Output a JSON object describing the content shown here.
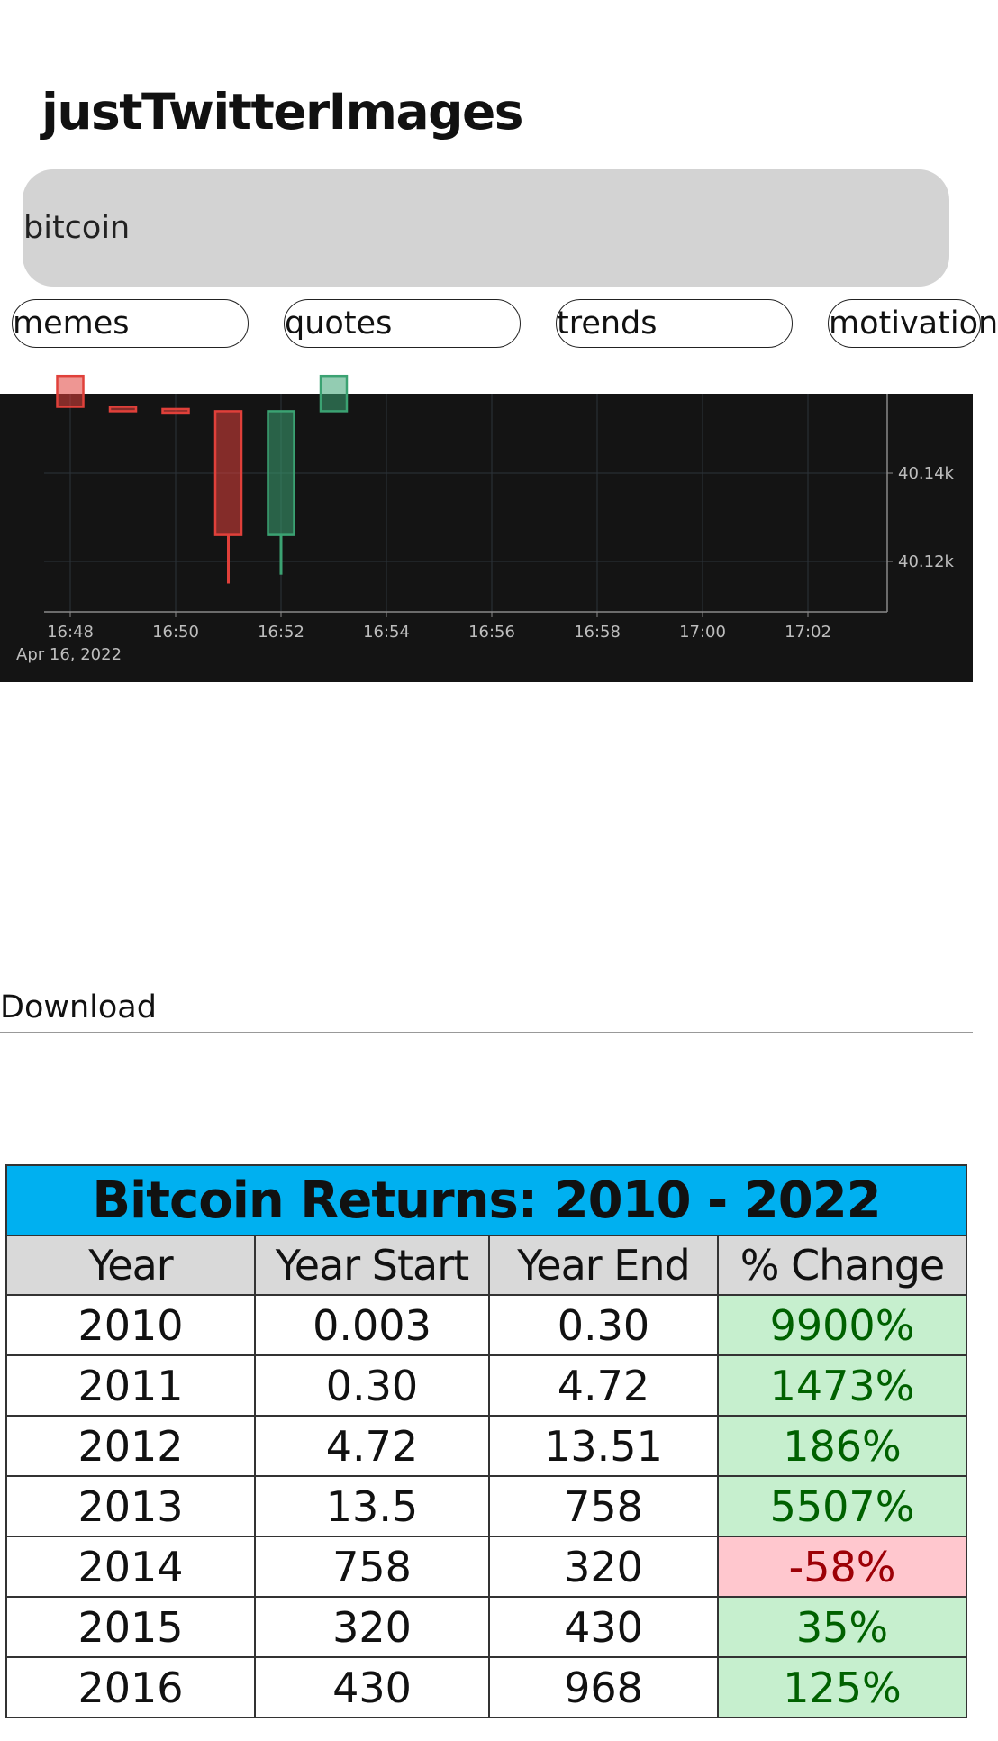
{
  "app": {
    "title": "justTwitterImages"
  },
  "search": {
    "value": "bitcoin"
  },
  "chips": [
    "memes",
    "quotes",
    "trends",
    "motivation"
  ],
  "post1": {
    "chart_data": {
      "type": "candlestick",
      "x_ticks": [
        "16:48",
        "16:50",
        "16:52",
        "16:54",
        "16:56",
        "16:58",
        "17:00",
        "17:02"
      ],
      "y_ticks": [
        "40.14k",
        "40.12k"
      ],
      "date_label": "Apr 16, 2022",
      "candles": [
        {
          "time": "16:48",
          "open": 40.162,
          "close": 40.155,
          "low": 40.155,
          "dir": "down"
        },
        {
          "time": "16:49",
          "open": 40.155,
          "close": 40.154,
          "low": 40.154,
          "dir": "down"
        },
        {
          "time": "16:50",
          "open": 40.1545,
          "close": 40.154,
          "low": 40.154,
          "dir": "down"
        },
        {
          "time": "16:51",
          "open": 40.154,
          "close": 40.126,
          "low": 40.115,
          "dir": "down"
        },
        {
          "time": "16:52",
          "open": 40.126,
          "close": 40.154,
          "low": 40.117,
          "dir": "up"
        },
        {
          "time": "16:53",
          "open": 40.154,
          "close": 40.162,
          "low": 40.154,
          "dir": "up"
        }
      ],
      "colors": {
        "up": "#3ba272",
        "down": "#e0403a",
        "background": "#141414"
      }
    }
  },
  "download": {
    "label": "Download"
  },
  "post2": {
    "table_title": "Bitcoin Returns: 2010 - 2022",
    "headers": [
      "Year",
      "Year Start",
      "Year End",
      "% Change"
    ],
    "rows": [
      [
        "2010",
        "0.003",
        "0.30",
        "9900%"
      ],
      [
        "2011",
        "0.30",
        "4.72",
        "1473%"
      ],
      [
        "2012",
        "4.72",
        "13.51",
        "186%"
      ],
      [
        "2013",
        "13.5",
        "758",
        "5507%"
      ],
      [
        "2014",
        "758",
        "320",
        "-58%"
      ],
      [
        "2015",
        "320",
        "430",
        "35%"
      ],
      [
        "2016",
        "430",
        "968",
        "125%"
      ]
    ]
  }
}
